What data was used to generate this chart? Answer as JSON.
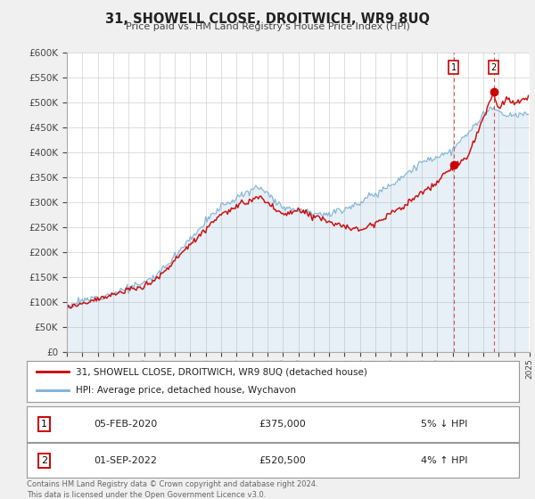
{
  "title": "31, SHOWELL CLOSE, DROITWICH, WR9 8UQ",
  "subtitle": "Price paid vs. HM Land Registry's House Price Index (HPI)",
  "legend_line1": "31, SHOWELL CLOSE, DROITWICH, WR9 8UQ (detached house)",
  "legend_line2": "HPI: Average price, detached house, Wychavon",
  "marker1_date": "05-FEB-2020",
  "marker1_price": 375000,
  "marker1_label": "5% ↓ HPI",
  "marker2_date": "01-SEP-2022",
  "marker2_price": 520500,
  "marker2_label": "4% ↑ HPI",
  "footnote": "Contains HM Land Registry data © Crown copyright and database right 2024.\nThis data is licensed under the Open Government Licence v3.0.",
  "hpi_color": "#7ab0d4",
  "price_color": "#cc0000",
  "vline_color": "#cc0000",
  "background_color": "#f0f0f0",
  "plot_bg_color": "#ffffff",
  "ylim": [
    0,
    600000
  ],
  "yticks": [
    0,
    50000,
    100000,
    150000,
    200000,
    250000,
    300000,
    350000,
    400000,
    450000,
    500000,
    550000,
    600000
  ],
  "year_start": 1995,
  "year_end": 2025,
  "marker1_year": 2020.083,
  "marker2_year": 2022.667
}
